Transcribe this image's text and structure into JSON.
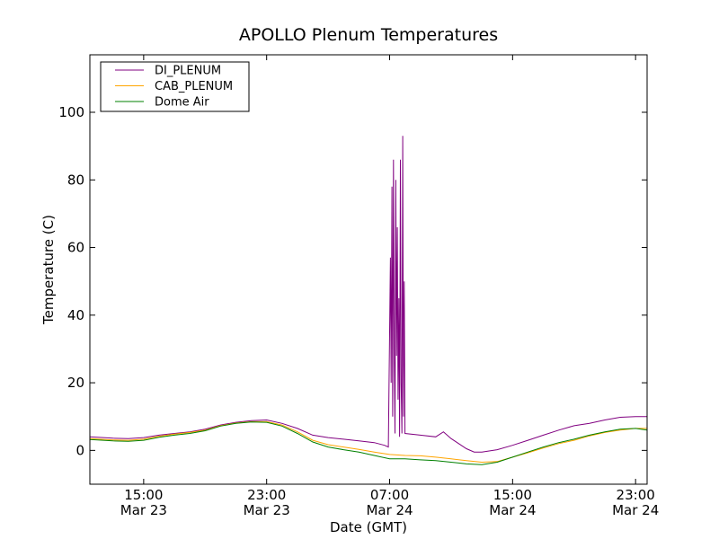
{
  "chart_data": {
    "type": "line",
    "title": "APOLLO Plenum Temperatures",
    "xlabel": "Date (GMT)",
    "ylabel": "Temperature (C)",
    "xlim": [
      "Mar 23 11:30",
      "Mar 24 23:45"
    ],
    "ylim": [
      -10,
      117
    ],
    "grid": false,
    "legend_position": "top-left",
    "y_ticks": [
      0,
      20,
      40,
      60,
      80,
      100
    ],
    "x_ticks": [
      {
        "time": "15:00",
        "date": "Mar 23",
        "t": "Mar 23 15:00"
      },
      {
        "time": "23:00",
        "date": "Mar 23",
        "t": "Mar 23 23:00"
      },
      {
        "time": "07:00",
        "date": "Mar 24",
        "t": "Mar 24 07:00"
      },
      {
        "time": "15:00",
        "date": "Mar 24",
        "t": "Mar 24 15:00"
      },
      {
        "time": "23:00",
        "date": "Mar 24",
        "t": "Mar 24 23:00"
      }
    ],
    "series": [
      {
        "name": "DI_PLENUM",
        "color": "#800080",
        "points": [
          [
            "Mar 23 11:30",
            4.0
          ],
          [
            "Mar 23 13:00",
            3.6
          ],
          [
            "Mar 23 14:00",
            3.5
          ],
          [
            "Mar 23 15:00",
            3.8
          ],
          [
            "Mar 23 16:00",
            4.5
          ],
          [
            "Mar 23 17:00",
            5.0
          ],
          [
            "Mar 23 18:00",
            5.5
          ],
          [
            "Mar 23 19:00",
            6.3
          ],
          [
            "Mar 23 20:00",
            7.5
          ],
          [
            "Mar 23 21:00",
            8.3
          ],
          [
            "Mar 23 22:00",
            8.8
          ],
          [
            "Mar 23 23:00",
            9.0
          ],
          [
            "Mar 24 00:00",
            8.0
          ],
          [
            "Mar 24 01:00",
            6.5
          ],
          [
            "Mar 24 02:00",
            4.5
          ],
          [
            "Mar 24 03:00",
            3.8
          ],
          [
            "Mar 24 04:00",
            3.3
          ],
          [
            "Mar 24 05:00",
            2.8
          ],
          [
            "Mar 24 06:00",
            2.3
          ],
          [
            "Mar 24 06:40",
            1.5
          ],
          [
            "Mar 24 06:55",
            1.0
          ],
          [
            "Mar 24 07:00",
            35
          ],
          [
            "Mar 24 07:03",
            57
          ],
          [
            "Mar 24 07:06",
            20
          ],
          [
            "Mar 24 07:09",
            78
          ],
          [
            "Mar 24 07:12",
            10
          ],
          [
            "Mar 24 07:15",
            86
          ],
          [
            "Mar 24 07:18",
            30
          ],
          [
            "Mar 24 07:21",
            5
          ],
          [
            "Mar 24 07:24",
            80
          ],
          [
            "Mar 24 07:27",
            28
          ],
          [
            "Mar 24 07:30",
            66
          ],
          [
            "Mar 24 07:33",
            15
          ],
          [
            "Mar 24 07:36",
            45
          ],
          [
            "Mar 24 07:39",
            4
          ],
          [
            "Mar 24 07:42",
            86
          ],
          [
            "Mar 24 07:45",
            20
          ],
          [
            "Mar 24 07:48",
            5
          ],
          [
            "Mar 24 07:51",
            93
          ],
          [
            "Mar 24 07:54",
            10
          ],
          [
            "Mar 24 07:57",
            50
          ],
          [
            "Mar 24 08:00",
            5.0
          ],
          [
            "Mar 24 09:00",
            4.5
          ],
          [
            "Mar 24 10:00",
            4.0
          ],
          [
            "Mar 24 10:30",
            5.5
          ],
          [
            "Mar 24 11:00",
            3.5
          ],
          [
            "Mar 24 12:00",
            0.5
          ],
          [
            "Mar 24 12:30",
            -0.5
          ],
          [
            "Mar 24 13:00",
            -0.5
          ],
          [
            "Mar 24 14:00",
            0.2
          ],
          [
            "Mar 24 15:00",
            1.5
          ],
          [
            "Mar 24 16:00",
            3.0
          ],
          [
            "Mar 24 17:00",
            4.5
          ],
          [
            "Mar 24 18:00",
            6.0
          ],
          [
            "Mar 24 19:00",
            7.3
          ],
          [
            "Mar 24 20:00",
            8.0
          ],
          [
            "Mar 24 21:00",
            9.0
          ],
          [
            "Mar 24 22:00",
            9.8
          ],
          [
            "Mar 24 23:00",
            10.0
          ],
          [
            "Mar 24 23:45",
            10.0
          ]
        ]
      },
      {
        "name": "CAB_PLENUM",
        "color": "#ffa500",
        "points": [
          [
            "Mar 23 11:30",
            3.5
          ],
          [
            "Mar 23 13:00",
            3.1
          ],
          [
            "Mar 23 14:00",
            3.0
          ],
          [
            "Mar 23 15:00",
            3.3
          ],
          [
            "Mar 23 16:00",
            4.2
          ],
          [
            "Mar 23 17:00",
            4.8
          ],
          [
            "Mar 23 18:00",
            5.3
          ],
          [
            "Mar 23 19:00",
            6.0
          ],
          [
            "Mar 23 20:00",
            7.3
          ],
          [
            "Mar 23 21:00",
            8.1
          ],
          [
            "Mar 23 22:00",
            8.5
          ],
          [
            "Mar 23 23:00",
            8.5
          ],
          [
            "Mar 24 00:00",
            7.5
          ],
          [
            "Mar 24 01:00",
            5.5
          ],
          [
            "Mar 24 02:00",
            3.0
          ],
          [
            "Mar 24 03:00",
            1.7
          ],
          [
            "Mar 24 04:00",
            1.0
          ],
          [
            "Mar 24 05:00",
            0.3
          ],
          [
            "Mar 24 06:00",
            -0.5
          ],
          [
            "Mar 24 07:00",
            -1.2
          ],
          [
            "Mar 24 08:00",
            -1.5
          ],
          [
            "Mar 24 09:00",
            -1.6
          ],
          [
            "Mar 24 10:00",
            -2.0
          ],
          [
            "Mar 24 11:00",
            -2.5
          ],
          [
            "Mar 24 12:00",
            -3.0
          ],
          [
            "Mar 24 13:00",
            -3.5
          ],
          [
            "Mar 24 14:00",
            -3.3
          ],
          [
            "Mar 24 15:00",
            -2.0
          ],
          [
            "Mar 24 16:00",
            -0.7
          ],
          [
            "Mar 24 17:00",
            0.7
          ],
          [
            "Mar 24 18:00",
            2.0
          ],
          [
            "Mar 24 19:00",
            3.0
          ],
          [
            "Mar 24 20:00",
            4.3
          ],
          [
            "Mar 24 21:00",
            5.3
          ],
          [
            "Mar 24 22:00",
            6.0
          ],
          [
            "Mar 24 23:00",
            6.5
          ],
          [
            "Mar 24 23:45",
            6.5
          ]
        ]
      },
      {
        "name": "Dome Air",
        "color": "#008000",
        "points": [
          [
            "Mar 23 11:30",
            3.2
          ],
          [
            "Mar 23 13:00",
            2.8
          ],
          [
            "Mar 23 14:00",
            2.7
          ],
          [
            "Mar 23 15:00",
            3.0
          ],
          [
            "Mar 23 16:00",
            3.9
          ],
          [
            "Mar 23 17:00",
            4.5
          ],
          [
            "Mar 23 18:00",
            5.0
          ],
          [
            "Mar 23 19:00",
            5.8
          ],
          [
            "Mar 23 20:00",
            7.2
          ],
          [
            "Mar 23 21:00",
            8.0
          ],
          [
            "Mar 23 22:00",
            8.4
          ],
          [
            "Mar 23 23:00",
            8.3
          ],
          [
            "Mar 24 00:00",
            7.2
          ],
          [
            "Mar 24 01:00",
            5.0
          ],
          [
            "Mar 24 02:00",
            2.5
          ],
          [
            "Mar 24 03:00",
            1.0
          ],
          [
            "Mar 24 04:00",
            0.2
          ],
          [
            "Mar 24 05:00",
            -0.5
          ],
          [
            "Mar 24 06:00",
            -1.5
          ],
          [
            "Mar 24 07:00",
            -2.5
          ],
          [
            "Mar 24 08:00",
            -2.5
          ],
          [
            "Mar 24 09:00",
            -2.8
          ],
          [
            "Mar 24 10:00",
            -3.0
          ],
          [
            "Mar 24 11:00",
            -3.5
          ],
          [
            "Mar 24 12:00",
            -4.0
          ],
          [
            "Mar 24 13:00",
            -4.2
          ],
          [
            "Mar 24 14:00",
            -3.5
          ],
          [
            "Mar 24 15:00",
            -2.0
          ],
          [
            "Mar 24 16:00",
            -0.5
          ],
          [
            "Mar 24 17:00",
            1.0
          ],
          [
            "Mar 24 18:00",
            2.3
          ],
          [
            "Mar 24 19:00",
            3.3
          ],
          [
            "Mar 24 20:00",
            4.5
          ],
          [
            "Mar 24 21:00",
            5.5
          ],
          [
            "Mar 24 22:00",
            6.3
          ],
          [
            "Mar 24 23:00",
            6.5
          ],
          [
            "Mar 24 23:45",
            6.0
          ]
        ]
      }
    ]
  }
}
